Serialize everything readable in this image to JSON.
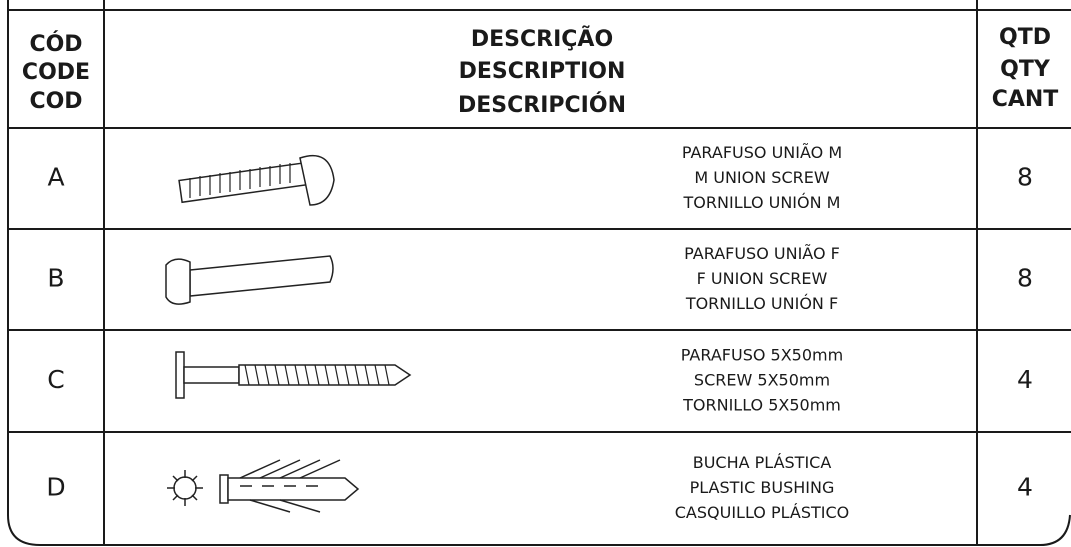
{
  "header": {
    "code": [
      "CÓD",
      "CODE",
      "COD"
    ],
    "description": [
      "DESCRIÇÃO",
      "DESCRIPTION",
      "DESCRIPCIÓN"
    ],
    "quantity": [
      "QTD",
      "QTY",
      "CANT"
    ]
  },
  "rows": [
    {
      "code": "A",
      "description": [
        "PARAFUSO UNIÃO M",
        "M UNION SCREW",
        "TORNILLO UNIÓN M"
      ],
      "quantity": 8
    },
    {
      "code": "B",
      "description": [
        "PARAFUSO UNIÃO F",
        "F UNION SCREW",
        "TORNILLO UNIÓN F"
      ],
      "quantity": 8
    },
    {
      "code": "C",
      "description": [
        "PARAFUSO 5X50mm",
        "SCREW 5X50mm",
        "TORNILLO 5X50mm"
      ],
      "quantity": 4
    },
    {
      "code": "D",
      "description": [
        "BUCHA PLÁSTICA",
        "PLASTIC BUSHING",
        "CASQUILLO PLÁSTICO"
      ],
      "quantity": 4
    }
  ]
}
